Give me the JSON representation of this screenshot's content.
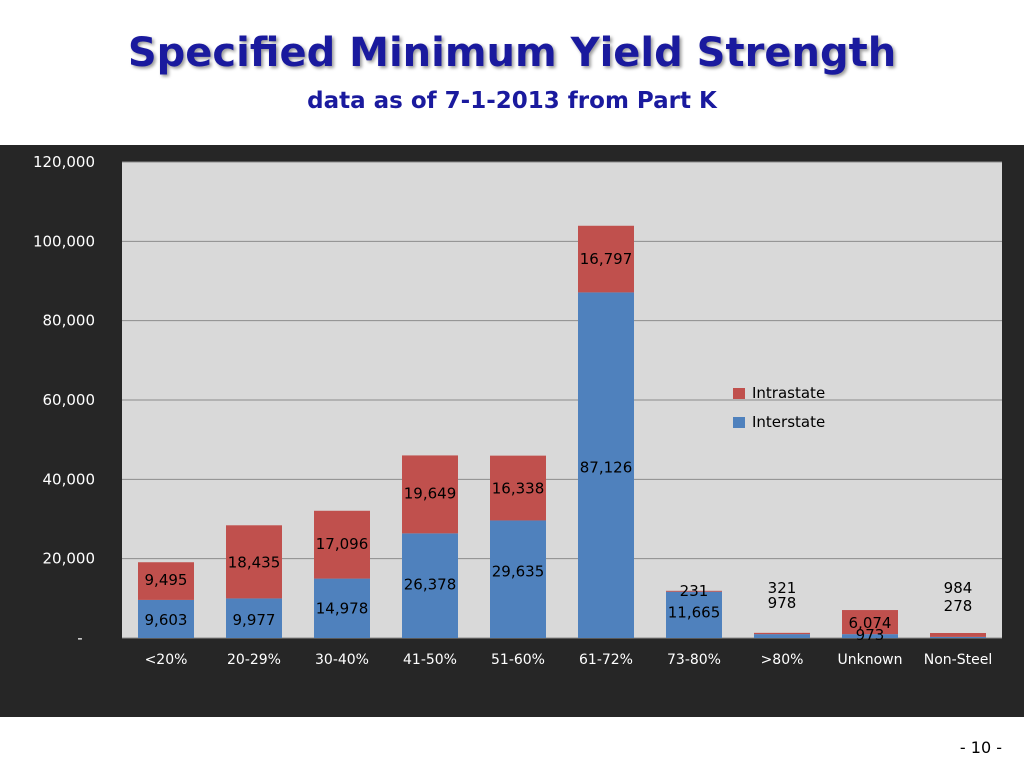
{
  "slide": {
    "title": "Specified Minimum Yield Strength",
    "subtitle": "data as of 7-1-2013 from Part K",
    "page_number": "- 10 -"
  },
  "chart_data": {
    "type": "bar",
    "stacked": true,
    "categories": [
      "<20%",
      "20-29%",
      "30-40%",
      "41-50%",
      "51-60%",
      "61-72%",
      "73-80%",
      ">80%",
      "Unknown",
      "Non-Steel"
    ],
    "series": [
      {
        "name": "Interstate",
        "color": "#4f81bd",
        "values": [
          9603,
          9977,
          14978,
          26378,
          29635,
          87126,
          11665,
          978,
          973,
          278
        ],
        "labels": [
          "9,603",
          "9,977",
          "14,978",
          "26,378",
          "29,635",
          "87,126",
          "11,665",
          "978",
          "973",
          "278"
        ]
      },
      {
        "name": "Intrastate",
        "color": "#c0504d",
        "values": [
          9495,
          18435,
          17096,
          19649,
          16338,
          16797,
          231,
          321,
          6074,
          984
        ],
        "labels": [
          "9,495",
          "18,435",
          "17,096",
          "19,649",
          "16,338",
          "16,797",
          "231",
          "321",
          "6,074",
          "984"
        ]
      }
    ],
    "y_ticks": [
      0,
      20000,
      40000,
      60000,
      80000,
      100000,
      120000
    ],
    "y_tick_labels": [
      "-",
      "20,000",
      "40,000",
      "60,000",
      "80,000",
      "100,000",
      "120,000"
    ],
    "ylim": [
      0,
      120000
    ],
    "grid": true,
    "legend_position": "right",
    "plot_background": "#d9d9d9",
    "frame_background": "#262626"
  }
}
